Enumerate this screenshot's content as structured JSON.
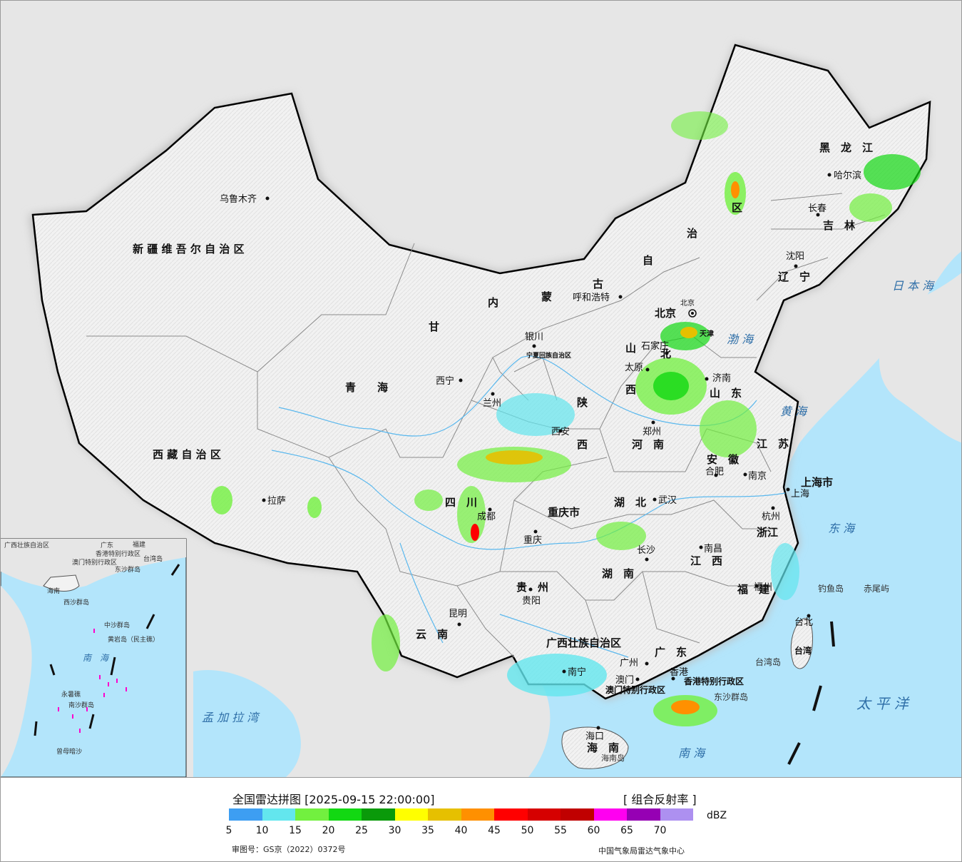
{
  "map": {
    "province_labels": [
      {
        "id": "xinjiang",
        "text": "新 疆 维 吾 尔 自 治 区"
      },
      {
        "id": "xizang",
        "text": "西 藏 自 治 区"
      },
      {
        "id": "qinghai",
        "text": "青　　海"
      },
      {
        "id": "gansu",
        "text": "甘"
      },
      {
        "id": "neimenggu-1",
        "text": "内"
      },
      {
        "id": "neimenggu-2",
        "text": "蒙"
      },
      {
        "id": "neimenggu-3",
        "text": "古"
      },
      {
        "id": "neimenggu-4",
        "text": "自"
      },
      {
        "id": "neimenggu-5",
        "text": "治"
      },
      {
        "id": "neimenggu-6",
        "text": "区"
      },
      {
        "id": "heilongjiang",
        "text": "黑　龙　江"
      },
      {
        "id": "jilin",
        "text": "吉　林"
      },
      {
        "id": "liaoning",
        "text": "辽　宁"
      },
      {
        "id": "hebei",
        "text": "北"
      },
      {
        "id": "shanxi-1",
        "text": "山"
      },
      {
        "id": "shanxi-2",
        "text": "西"
      },
      {
        "id": "shandong",
        "text": "山　东"
      },
      {
        "id": "henan",
        "text": "河　南"
      },
      {
        "id": "shaanxi-1",
        "text": "陕"
      },
      {
        "id": "shaanxi-2",
        "text": "西"
      },
      {
        "id": "ningxia",
        "text": "宁夏回族自治区"
      },
      {
        "id": "sichuan",
        "text": "四　川"
      },
      {
        "id": "chongqing",
        "text": "重庆市"
      },
      {
        "id": "hubei",
        "text": "湖　北"
      },
      {
        "id": "hunan",
        "text": "湖　南"
      },
      {
        "id": "anhui",
        "text": "安　徽"
      },
      {
        "id": "jiangsu",
        "text": "江　苏"
      },
      {
        "id": "zhejiang",
        "text": "浙江"
      },
      {
        "id": "jiangxi",
        "text": "江　西"
      },
      {
        "id": "fujian",
        "text": "福　建"
      },
      {
        "id": "guizhou",
        "text": "贵　州"
      },
      {
        "id": "yunnan",
        "text": "云　南"
      },
      {
        "id": "guangxi",
        "text": "广西壮族自治区"
      },
      {
        "id": "guangdong",
        "text": "广　东"
      },
      {
        "id": "hainan",
        "text": "海　南"
      },
      {
        "id": "shanghai",
        "text": "上海市"
      },
      {
        "id": "taiwan",
        "text": "台湾"
      },
      {
        "id": "hongkong",
        "text": "香港特别行政区"
      },
      {
        "id": "macao",
        "text": "澳门特别行政区"
      },
      {
        "id": "beijing",
        "text": "北京"
      },
      {
        "id": "tianjin",
        "text": "天津"
      }
    ],
    "cities": [
      {
        "name": "乌鲁木齐"
      },
      {
        "name": "拉萨"
      },
      {
        "name": "西宁"
      },
      {
        "name": "兰州"
      },
      {
        "name": "银川"
      },
      {
        "name": "呼和浩特"
      },
      {
        "name": "哈尔滨"
      },
      {
        "name": "长春"
      },
      {
        "name": "沈阳"
      },
      {
        "name": "北京"
      },
      {
        "name": "石家庄"
      },
      {
        "name": "太原"
      },
      {
        "name": "济南"
      },
      {
        "name": "郑州"
      },
      {
        "name": "西安"
      },
      {
        "name": "成都"
      },
      {
        "name": "重庆"
      },
      {
        "name": "武汉"
      },
      {
        "name": "合肥"
      },
      {
        "name": "南京"
      },
      {
        "name": "上海"
      },
      {
        "name": "杭州"
      },
      {
        "name": "南昌"
      },
      {
        "name": "长沙"
      },
      {
        "name": "贵阳"
      },
      {
        "name": "昆明"
      },
      {
        "name": "南宁"
      },
      {
        "name": "广州"
      },
      {
        "name": "福州"
      },
      {
        "name": "台北"
      },
      {
        "name": "海口"
      },
      {
        "name": "香港"
      },
      {
        "name": "澳门"
      }
    ],
    "seas": [
      {
        "name": "日 本 海"
      },
      {
        "name": "渤 海"
      },
      {
        "name": "黄 海"
      },
      {
        "name": "东 海"
      },
      {
        "name": "太 平 洋"
      },
      {
        "name": "南 海"
      },
      {
        "name": "孟 加 拉 湾"
      }
    ],
    "islands": [
      {
        "name": "钓鱼岛"
      },
      {
        "name": "赤尾屿"
      },
      {
        "name": "台湾岛"
      },
      {
        "name": "东沙群岛"
      },
      {
        "name": "海南岛"
      }
    ],
    "inset": {
      "labels": [
        "广西壮族自治区",
        "广东",
        "福建",
        "台湾岛",
        "香港特别行政区",
        "澳门特别行政区",
        "东沙群岛",
        "海南",
        "西沙群岛",
        "中沙群岛",
        "黄岩岛（民主礁）",
        "南　海",
        "永暑礁",
        "南沙群岛",
        "曾母暗沙"
      ]
    }
  },
  "legend": {
    "title": "全国雷达拼图 [2025-09-15 22:00:00]",
    "product": "[ 组合反射率 ]",
    "unit": "dBZ",
    "colors": [
      "#3d9ef2",
      "#63e6ee",
      "#72f03f",
      "#12d812",
      "#0a9a0a",
      "#ffff00",
      "#e6c000",
      "#ff9000",
      "#ff0000",
      "#d60000",
      "#c00000",
      "#ff00f0",
      "#9600b4",
      "#ad90f0"
    ],
    "ticks": [
      "5",
      "10",
      "15",
      "20",
      "25",
      "30",
      "35",
      "40",
      "45",
      "50",
      "55",
      "60",
      "65",
      "70"
    ],
    "approval": "审图号：GS京（2022）0372号",
    "credit": "中国气象局雷达气象中心"
  }
}
